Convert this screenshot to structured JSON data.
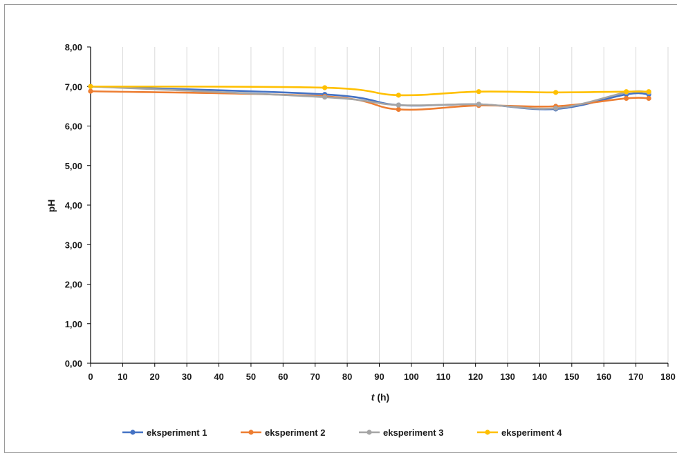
{
  "chart_data": {
    "type": "line",
    "xlabel_italic": "t",
    "xlabel_rest": " (h)",
    "ylabel": "pH",
    "xlim": [
      0,
      180
    ],
    "ylim": [
      0,
      8
    ],
    "xticks": [
      "0",
      "10",
      "20",
      "30",
      "40",
      "50",
      "60",
      "70",
      "80",
      "90",
      "100",
      "110",
      "120",
      "130",
      "140",
      "150",
      "160",
      "170",
      "180"
    ],
    "yticks": [
      "0,00",
      "1,00",
      "2,00",
      "3,00",
      "4,00",
      "5,00",
      "6,00",
      "7,00",
      "8,00"
    ],
    "grid": "vertical",
    "legend_position": "bottom",
    "x": [
      0,
      73,
      96,
      121,
      145,
      167,
      174
    ],
    "series": [
      {
        "name": "eksperiment 1",
        "color": "#4472C4",
        "values": [
          7.0,
          6.8,
          6.53,
          6.55,
          6.43,
          6.8,
          6.8
        ]
      },
      {
        "name": "eksperiment 2",
        "color": "#ED7D31",
        "values": [
          6.88,
          6.75,
          6.42,
          6.52,
          6.5,
          6.7,
          6.7
        ]
      },
      {
        "name": "eksperiment 3",
        "color": "#A5A5A5",
        "values": [
          7.0,
          6.73,
          6.53,
          6.55,
          6.45,
          6.85,
          6.85
        ]
      },
      {
        "name": "eksperiment 4",
        "color": "#FFC000",
        "values": [
          7.0,
          6.97,
          6.78,
          6.87,
          6.85,
          6.87,
          6.87
        ]
      }
    ]
  }
}
